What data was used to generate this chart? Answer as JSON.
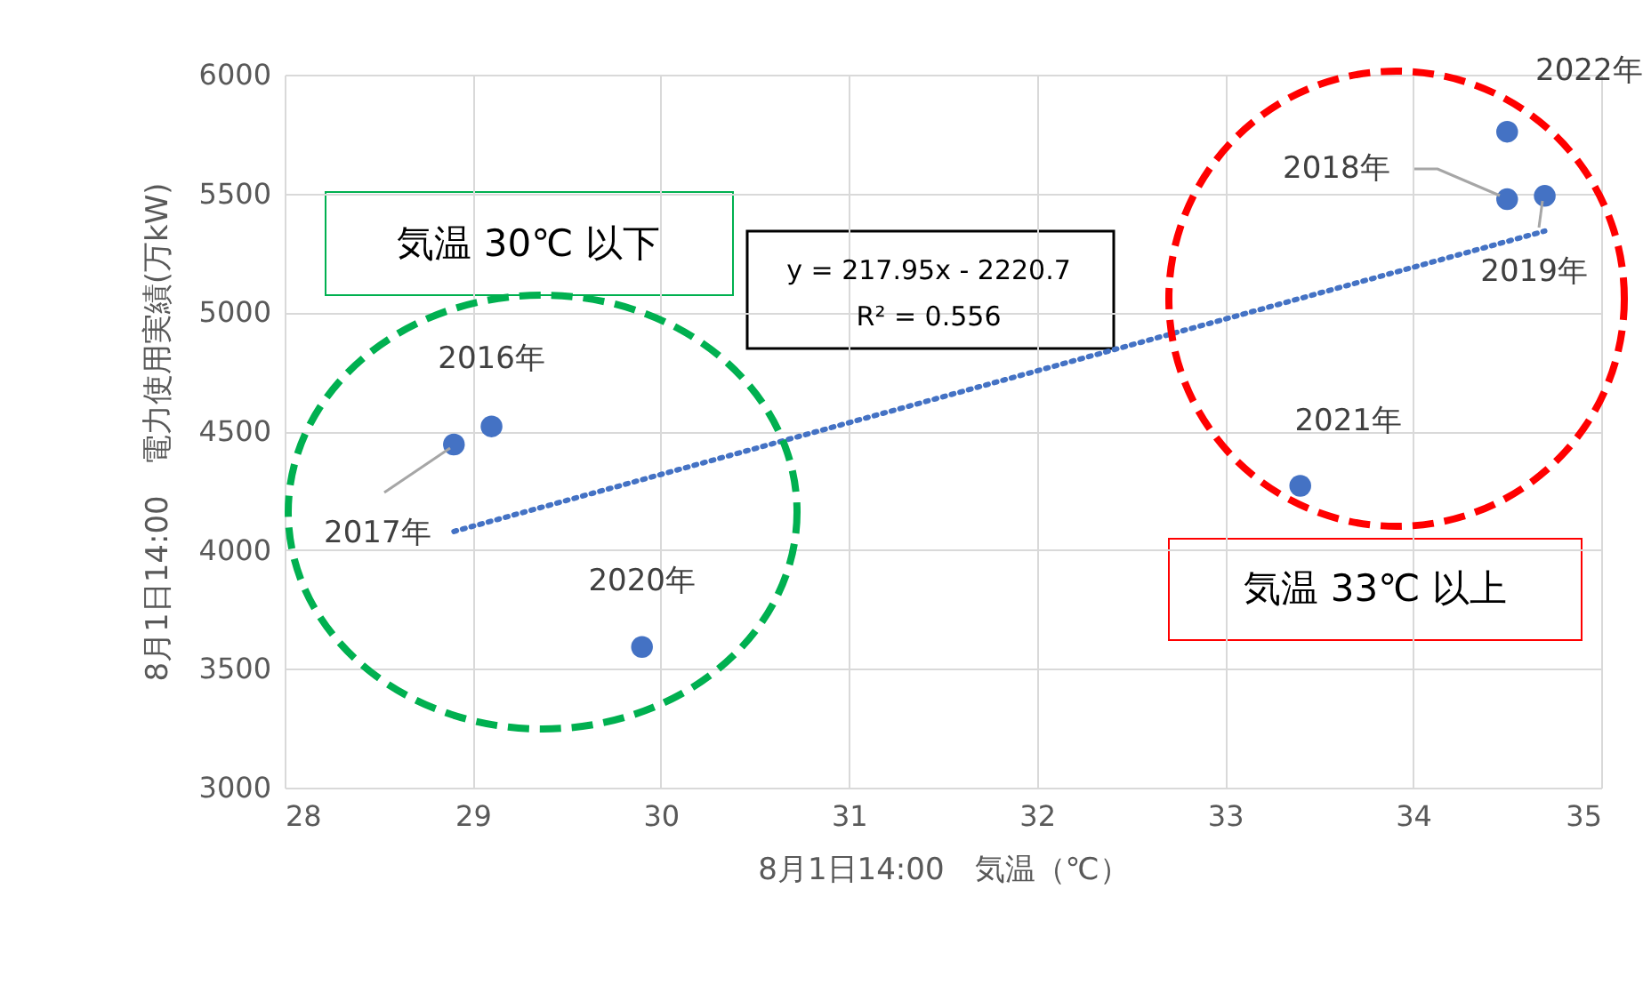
{
  "chart_data": {
    "type": "scatter",
    "xlabel": "8月1日14:00　気温（℃）",
    "ylabel": "8月1日14:00　電力使用実績(万kW)",
    "xlim": [
      28,
      35
    ],
    "xticks": [
      28,
      29,
      30,
      31,
      32,
      33,
      34,
      35
    ],
    "ylim": [
      3000,
      6000
    ],
    "yticks": [
      3000,
      3500,
      4000,
      4500,
      5000,
      5500,
      6000
    ],
    "grid": true,
    "marker": "circle",
    "series": [
      {
        "type": "scatter",
        "color": "#4472c4",
        "x": [
          29.1,
          28.9,
          34.5,
          34.7,
          29.9,
          33.4,
          34.5
        ],
        "values": [
          4520,
          4444,
          5476,
          5490,
          3592,
          4270,
          5760
        ]
      },
      {
        "type": "line",
        "color": "#4472c4",
        "line_style": "dotted",
        "marker": "none",
        "x": [
          28.9,
          34.7
        ],
        "values": [
          4078,
          5342
        ]
      }
    ],
    "annotations": [
      {
        "text": "2016年",
        "x": 29.1,
        "y": 4520
      },
      {
        "text": "2017年",
        "x": 28.9,
        "y": 4444
      },
      {
        "text": "2020年",
        "x": 29.9,
        "y": 3592
      },
      {
        "text": "2021年",
        "x": 33.4,
        "y": 4270
      },
      {
        "text": "2018年",
        "x": 34.5,
        "y": 5476
      },
      {
        "text": "2019年",
        "x": 34.7,
        "y": 5490
      },
      {
        "text": "2022年",
        "x": 34.5,
        "y": 5760
      },
      "y = 217.95x - 2220.7",
      "R² = 0.556",
      "気温 30℃ 以下",
      "気温 33℃ 以上"
    ]
  }
}
